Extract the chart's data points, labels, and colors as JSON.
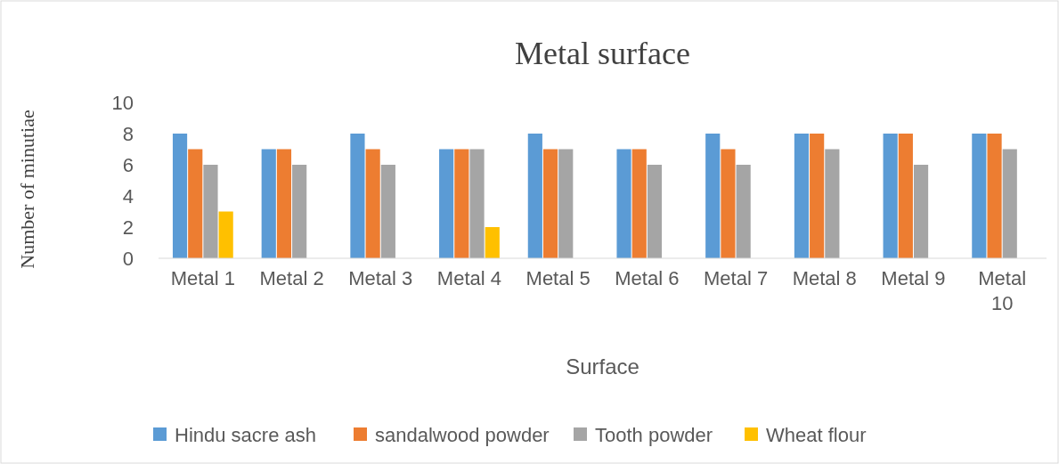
{
  "chart_data": {
    "type": "bar",
    "title": "Metal surface",
    "xlabel": "Surface",
    "ylabel": "Number of minutiae",
    "categories": [
      "Metal 1",
      "Metal 2",
      "Metal 3",
      "Metal 4",
      "Metal 5",
      "Metal 6",
      "Metal 7",
      "Metal 8",
      "Metal 9",
      "Metal 10"
    ],
    "series": [
      {
        "name": "Hindu sacre ash",
        "color": "#5b9bd5",
        "values": [
          8,
          7,
          8,
          7,
          8,
          7,
          8,
          8,
          8,
          8
        ]
      },
      {
        "name": "sandalwood powder",
        "color": "#ed7d31",
        "values": [
          7,
          7,
          7,
          7,
          7,
          7,
          7,
          8,
          8,
          8
        ]
      },
      {
        "name": "Tooth powder",
        "color": "#a5a5a5",
        "values": [
          6,
          6,
          6,
          7,
          7,
          6,
          6,
          7,
          6,
          7
        ]
      },
      {
        "name": "Wheat flour",
        "color": "#ffc000",
        "values": [
          3,
          0,
          0,
          2,
          0,
          0,
          0,
          0,
          0,
          0
        ]
      }
    ],
    "ylim": [
      0,
      10
    ],
    "yticks": [
      0,
      2,
      4,
      6,
      8,
      10
    ],
    "grid": false,
    "legend": "bottom"
  }
}
